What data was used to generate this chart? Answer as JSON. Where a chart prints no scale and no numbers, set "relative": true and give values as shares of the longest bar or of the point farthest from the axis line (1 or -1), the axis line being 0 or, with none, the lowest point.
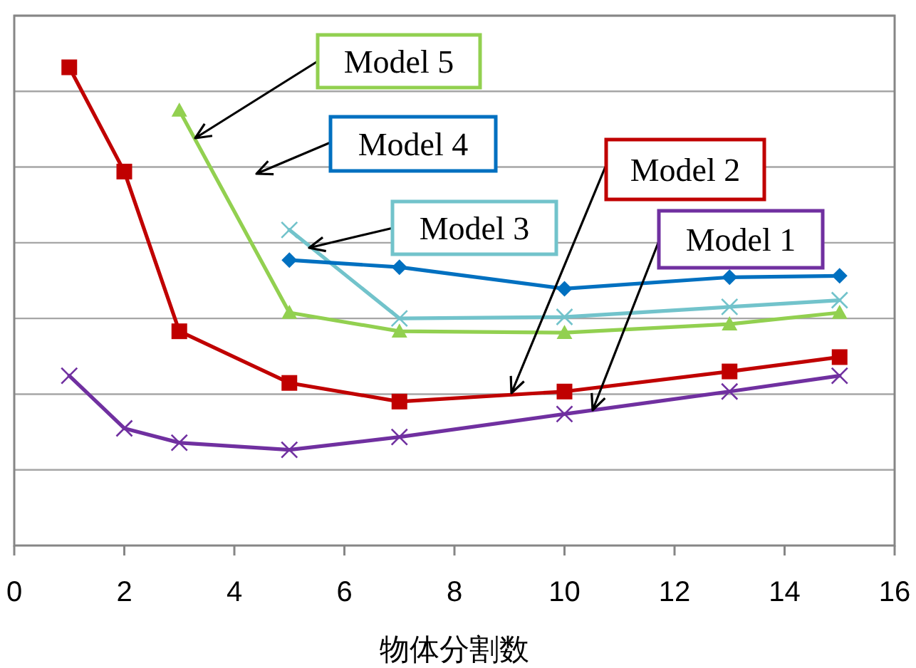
{
  "chart_data": {
    "type": "line",
    "xlabel": "物体分割数",
    "relative": true,
    "xlim": [
      0,
      16
    ],
    "xticks": [
      0,
      2,
      4,
      6,
      8,
      10,
      12,
      14,
      16
    ],
    "grid": "y",
    "series": [
      {
        "name": "Model 1",
        "color": "#7030a0",
        "marker": "cross",
        "x": [
          1,
          2,
          3,
          5,
          7,
          10,
          13,
          15
        ],
        "values": [
          0.355,
          0.245,
          0.215,
          0.2,
          0.227,
          0.275,
          0.322,
          0.355
        ]
      },
      {
        "name": "Model 2",
        "color": "#c00000",
        "marker": "square",
        "x": [
          1,
          2,
          3,
          5,
          7,
          10,
          13,
          15
        ],
        "values": [
          1,
          0.782,
          0.448,
          0.34,
          0.301,
          0.322,
          0.364,
          0.394
        ]
      },
      {
        "name": "Model 3",
        "color": "#72c3cb",
        "marker": "cross",
        "x": [
          5,
          7,
          10,
          13,
          15
        ],
        "values": [
          0.66,
          0.475,
          0.478,
          0.499,
          0.513
        ]
      },
      {
        "name": "Model 4",
        "color": "#0070c0",
        "marker": "diamond",
        "x": [
          5,
          7,
          10,
          13,
          15
        ],
        "values": [
          0.597,
          0.582,
          0.537,
          0.561,
          0.564
        ]
      },
      {
        "name": "Model 5",
        "color": "#92d050",
        "marker": "triangle",
        "x": [
          3,
          5,
          7,
          10,
          13,
          15
        ],
        "values": [
          0.91,
          0.487,
          0.448,
          0.445,
          0.463,
          0.487
        ]
      }
    ]
  }
}
